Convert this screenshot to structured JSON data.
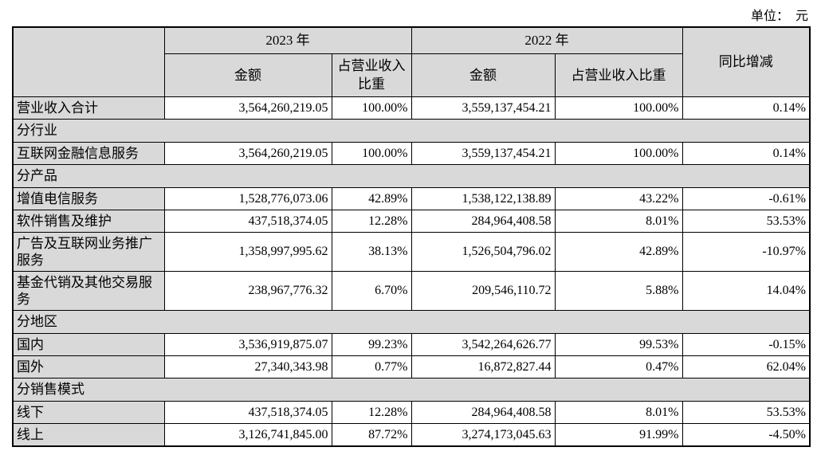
{
  "unit_label": "单位：　元",
  "colors": {
    "cell_shading": "#d9d9d9",
    "border": "#000000",
    "background": "#ffffff"
  },
  "table": {
    "header": {
      "corner": "",
      "y2023": "2023 年",
      "y2022": "2022 年",
      "amount": "金额",
      "ratio": "占营业收入比重",
      "yoy": "同比增减"
    },
    "rows": [
      {
        "type": "data",
        "label": "营业收入合计",
        "amount_2023": "3,564,260,219.05",
        "ratio_2023": "100.00%",
        "amount_2022": "3,559,137,454.21",
        "ratio_2022": "100.00%",
        "yoy": "0.14%"
      },
      {
        "type": "section",
        "label": "分行业"
      },
      {
        "type": "data",
        "label": "互联网金融信息服务",
        "amount_2023": "3,564,260,219.05",
        "ratio_2023": "100.00%",
        "amount_2022": "3,559,137,454.21",
        "ratio_2022": "100.00%",
        "yoy": "0.14%"
      },
      {
        "type": "section",
        "label": "分产品"
      },
      {
        "type": "data",
        "label": "增值电信服务",
        "amount_2023": "1,528,776,073.06",
        "ratio_2023": "42.89%",
        "amount_2022": "1,538,122,138.89",
        "ratio_2022": "43.22%",
        "yoy": "-0.61%"
      },
      {
        "type": "data",
        "label": "软件销售及维护",
        "amount_2023": "437,518,374.05",
        "ratio_2023": "12.28%",
        "amount_2022": "284,964,408.58",
        "ratio_2022": "8.01%",
        "yoy": "53.53%"
      },
      {
        "type": "data",
        "label": "广告及互联网业务推广服务",
        "amount_2023": "1,358,997,995.62",
        "ratio_2023": "38.13%",
        "amount_2022": "1,526,504,796.02",
        "ratio_2022": "42.89%",
        "yoy": "-10.97%"
      },
      {
        "type": "data",
        "label": "基金代销及其他交易服务",
        "amount_2023": "238,967,776.32",
        "ratio_2023": "6.70%",
        "amount_2022": "209,546,110.72",
        "ratio_2022": "5.88%",
        "yoy": "14.04%"
      },
      {
        "type": "section",
        "label": "分地区"
      },
      {
        "type": "data",
        "label": "国内",
        "amount_2023": "3,536,919,875.07",
        "ratio_2023": "99.23%",
        "amount_2022": "3,542,264,626.77",
        "ratio_2022": "99.53%",
        "yoy": "-0.15%"
      },
      {
        "type": "data",
        "label": "国外",
        "amount_2023": "27,340,343.98",
        "ratio_2023": "0.77%",
        "amount_2022": "16,872,827.44",
        "ratio_2022": "0.47%",
        "yoy": "62.04%"
      },
      {
        "type": "section",
        "label": "分销售模式"
      },
      {
        "type": "data",
        "label": "线下",
        "amount_2023": "437,518,374.05",
        "ratio_2023": "12.28%",
        "amount_2022": "284,964,408.58",
        "ratio_2022": "8.01%",
        "yoy": "53.53%"
      },
      {
        "type": "data",
        "label": "线上",
        "amount_2023": "3,126,741,845.00",
        "ratio_2023": "87.72%",
        "amount_2022": "3,274,173,045.63",
        "ratio_2022": "91.99%",
        "yoy": "-4.50%"
      }
    ]
  }
}
